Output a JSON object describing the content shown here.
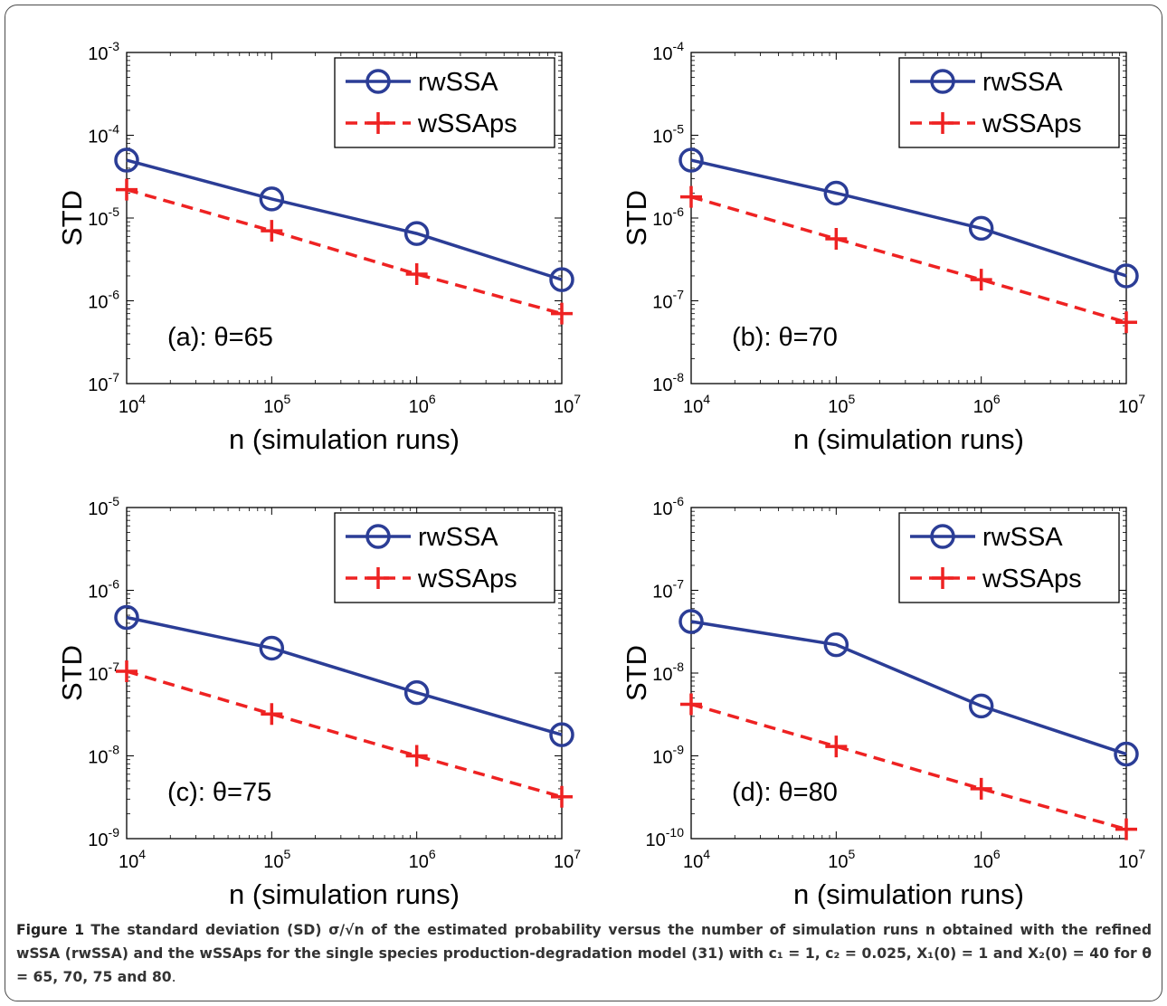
{
  "chart_data": [
    {
      "type": "line",
      "panel_label": "(a): θ=65",
      "xlabel": "n (simulation runs)",
      "ylabel": "STD",
      "x_scale": "log",
      "y_scale": "log",
      "xlim": [
        10000,
        10000000
      ],
      "ylim": [
        1e-07,
        0.001
      ],
      "x_ticks": [
        4,
        5,
        6,
        7
      ],
      "y_ticks": [
        -7,
        -6,
        -5,
        -4,
        -3
      ],
      "grid": false,
      "legend_position": "top-right",
      "x": [
        10000,
        100000,
        1000000,
        10000000
      ],
      "series": [
        {
          "name": "rwSSA",
          "values": [
            5e-05,
            1.7e-05,
            6.5e-06,
            1.8e-06
          ],
          "color": "#2b3d96",
          "style": "solid",
          "marker": "circle"
        },
        {
          "name": "wSSAps",
          "values": [
            2.2e-05,
            7e-06,
            2.1e-06,
            7e-07
          ],
          "color": "#ee2222",
          "style": "dashed",
          "marker": "plus"
        }
      ]
    },
    {
      "type": "line",
      "panel_label": "(b): θ=70",
      "xlabel": "n (simulation runs)",
      "ylabel": "STD",
      "x_scale": "log",
      "y_scale": "log",
      "xlim": [
        10000,
        10000000
      ],
      "ylim": [
        1e-08,
        0.0001
      ],
      "x_ticks": [
        4,
        5,
        6,
        7
      ],
      "y_ticks": [
        -8,
        -7,
        -6,
        -5,
        -4
      ],
      "grid": false,
      "legend_position": "top-right",
      "x": [
        10000,
        100000,
        1000000,
        10000000
      ],
      "series": [
        {
          "name": "rwSSA",
          "values": [
            5e-06,
            2e-06,
            7.5e-07,
            2e-07
          ],
          "color": "#2b3d96",
          "style": "solid",
          "marker": "circle"
        },
        {
          "name": "wSSAps",
          "values": [
            1.8e-06,
            5.6e-07,
            1.8e-07,
            5.5e-08
          ],
          "color": "#ee2222",
          "style": "dashed",
          "marker": "plus"
        }
      ]
    },
    {
      "type": "line",
      "panel_label": "(c): θ=75",
      "xlabel": "n (simulation runs)",
      "ylabel": "STD",
      "x_scale": "log",
      "y_scale": "log",
      "xlim": [
        10000,
        10000000
      ],
      "ylim": [
        1e-09,
        1e-05
      ],
      "x_ticks": [
        4,
        5,
        6,
        7
      ],
      "y_ticks": [
        -9,
        -8,
        -7,
        -6,
        -5
      ],
      "grid": false,
      "legend_position": "top-right",
      "x": [
        10000,
        100000,
        1000000,
        10000000
      ],
      "series": [
        {
          "name": "rwSSA",
          "values": [
            4.7e-07,
            2e-07,
            5.8e-08,
            1.8e-08
          ],
          "color": "#2b3d96",
          "style": "solid",
          "marker": "circle"
        },
        {
          "name": "wSSAps",
          "values": [
            1.05e-07,
            3.2e-08,
            1e-08,
            3.2e-09
          ],
          "color": "#ee2222",
          "style": "dashed",
          "marker": "plus"
        }
      ]
    },
    {
      "type": "line",
      "panel_label": "(d): θ=80",
      "xlabel": "n (simulation runs)",
      "ylabel": "STD",
      "x_scale": "log",
      "y_scale": "log",
      "xlim": [
        10000,
        10000000
      ],
      "ylim": [
        1e-10,
        1e-06
      ],
      "x_ticks": [
        4,
        5,
        6,
        7
      ],
      "y_ticks": [
        -10,
        -9,
        -8,
        -7,
        -6
      ],
      "grid": false,
      "legend_position": "top-right",
      "x": [
        10000,
        100000,
        1000000,
        10000000
      ],
      "series": [
        {
          "name": "rwSSA",
          "values": [
            4.2e-08,
            2.2e-08,
            4e-09,
            1.05e-09
          ],
          "color": "#2b3d96",
          "style": "solid",
          "marker": "circle"
        },
        {
          "name": "wSSAps",
          "values": [
            4.2e-09,
            1.3e-09,
            4e-10,
            1.3e-10
          ],
          "color": "#ee2222",
          "style": "dashed",
          "marker": "plus"
        }
      ]
    }
  ],
  "caption": {
    "label": "Figure 1",
    "bold_text": "The standard deviation (SD) σ/√n of the estimated probability versus the number of simulation runs n obtained with the refined wSSA (rwSSA) and the wSSAps for the single species production-degradation model (31) with c₁ = 1, c₂ = 0.025, X₁(0) = 1 and X₂(0) = 40 for θ = 65, 70, 75 and 80",
    "end": "."
  }
}
